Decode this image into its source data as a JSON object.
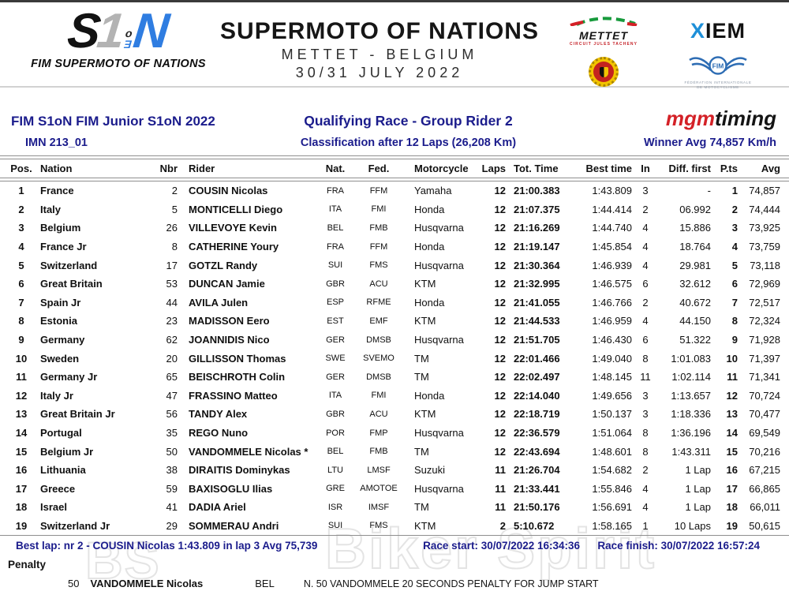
{
  "masthead": {
    "logo": {
      "letter_s": "S",
      "letter_1": "1",
      "letter_o": "o",
      "letter_e": "Ǝ",
      "letter_n": "N",
      "caption": "FIM SUPERMOTO OF NATIONS"
    },
    "event": {
      "line1": "SUPERMOTO OF NATIONS",
      "line2": "METTET - BELGIUM",
      "line3": "30/31 JULY 2022"
    },
    "sponsors": {
      "mettet_word": "METTET",
      "mettet_sub": "CIRCUIT JULES TACHENY",
      "xiem_x": "X",
      "xiem_iem": "IEM",
      "fim_label": "FIM",
      "fim_sub1": "FÉDÉRATION INTERNATIONALE",
      "fim_sub2": "DE MOTOCYCLISME"
    }
  },
  "info": {
    "championship": "FIM S1oN FIM Junior S1oN 2022",
    "imn": "IMN 213_01",
    "race_title": "Qualifying Race - Group Rider 2",
    "classification": "Classification after 12 Laps (26,208 Km)",
    "timing_logo_mgm": "mgm",
    "timing_logo_timing": "timing",
    "winner_avg": "Winner Avg 74,857 Km/h"
  },
  "table": {
    "headers": [
      "Pos.",
      "Nation",
      "Nbr",
      "Rider",
      "Nat.",
      "Fed.",
      "Motorcycle",
      "Laps",
      "Tot. Time",
      "Best time",
      "In",
      "Diff. first",
      "P.ts",
      "Avg"
    ],
    "rows": [
      [
        "1",
        "France",
        "2",
        "COUSIN Nicolas",
        "FRA",
        "FFM",
        "Yamaha",
        "12",
        "21:00.383",
        "1:43.809",
        "3",
        "-",
        "1",
        "74,857"
      ],
      [
        "2",
        "Italy",
        "5",
        "MONTICELLI Diego",
        "ITA",
        "FMI",
        "Honda",
        "12",
        "21:07.375",
        "1:44.414",
        "2",
        "06.992",
        "2",
        "74,444"
      ],
      [
        "3",
        "Belgium",
        "26",
        "VILLEVOYE Kevin",
        "BEL",
        "FMB",
        "Husqvarna",
        "12",
        "21:16.269",
        "1:44.740",
        "4",
        "15.886",
        "3",
        "73,925"
      ],
      [
        "4",
        "France Jr",
        "8",
        "CATHERINE Youry",
        "FRA",
        "FFM",
        "Honda",
        "12",
        "21:19.147",
        "1:45.854",
        "4",
        "18.764",
        "4",
        "73,759"
      ],
      [
        "5",
        "Switzerland",
        "17",
        "GOTZL Randy",
        "SUI",
        "FMS",
        "Husqvarna",
        "12",
        "21:30.364",
        "1:46.939",
        "4",
        "29.981",
        "5",
        "73,118"
      ],
      [
        "6",
        "Great Britain",
        "53",
        "DUNCAN Jamie",
        "GBR",
        "ACU",
        "KTM",
        "12",
        "21:32.995",
        "1:46.575",
        "6",
        "32.612",
        "6",
        "72,969"
      ],
      [
        "7",
        "Spain Jr",
        "44",
        "AVILA Julen",
        "ESP",
        "RFME",
        "Honda",
        "12",
        "21:41.055",
        "1:46.766",
        "2",
        "40.672",
        "7",
        "72,517"
      ],
      [
        "8",
        "Estonia",
        "23",
        "MADISSON Eero",
        "EST",
        "EMF",
        "KTM",
        "12",
        "21:44.533",
        "1:46.959",
        "4",
        "44.150",
        "8",
        "72,324"
      ],
      [
        "9",
        "Germany",
        "62",
        "JOANNIDIS Nico",
        "GER",
        "DMSB",
        "Husqvarna",
        "12",
        "21:51.705",
        "1:46.430",
        "6",
        "51.322",
        "9",
        "71,928"
      ],
      [
        "10",
        "Sweden",
        "20",
        "GILLISSON Thomas",
        "SWE",
        "SVEMO",
        "TM",
        "12",
        "22:01.466",
        "1:49.040",
        "8",
        "1:01.083",
        "10",
        "71,397"
      ],
      [
        "11",
        "Germany Jr",
        "65",
        "BEISCHROTH Colin",
        "GER",
        "DMSB",
        "TM",
        "12",
        "22:02.497",
        "1:48.145",
        "11",
        "1:02.114",
        "11",
        "71,341"
      ],
      [
        "12",
        "Italy Jr",
        "47",
        "FRASSINO Matteo",
        "ITA",
        "FMI",
        "Honda",
        "12",
        "22:14.040",
        "1:49.656",
        "3",
        "1:13.657",
        "12",
        "70,724"
      ],
      [
        "13",
        "Great Britain Jr",
        "56",
        "TANDY Alex",
        "GBR",
        "ACU",
        "KTM",
        "12",
        "22:18.719",
        "1:50.137",
        "3",
        "1:18.336",
        "13",
        "70,477"
      ],
      [
        "14",
        "Portugal",
        "35",
        "REGO Nuno",
        "POR",
        "FMP",
        "Husqvarna",
        "12",
        "22:36.579",
        "1:51.064",
        "8",
        "1:36.196",
        "14",
        "69,549"
      ],
      [
        "15",
        "Belgium Jr",
        "50",
        "VANDOMMELE Nicolas *",
        "BEL",
        "FMB",
        "TM",
        "12",
        "22:43.694",
        "1:48.601",
        "8",
        "1:43.311",
        "15",
        "70,216"
      ],
      [
        "16",
        "Lithuania",
        "38",
        "DIRAITIS Dominykas",
        "LTU",
        "LMSF",
        "Suzuki",
        "11",
        "21:26.704",
        "1:54.682",
        "2",
        "1 Lap",
        "16",
        "67,215"
      ],
      [
        "17",
        "Greece",
        "59",
        "BAXISOGLU Ilias",
        "GRE",
        "AMOTOE",
        "Husqvarna",
        "11",
        "21:33.441",
        "1:55.846",
        "4",
        "1 Lap",
        "17",
        "66,865"
      ],
      [
        "18",
        "Israel",
        "41",
        "DADIA Ariel",
        "ISR",
        "IMSF",
        "TM",
        "11",
        "21:50.176",
        "1:56.691",
        "4",
        "1 Lap",
        "18",
        "66,011"
      ],
      [
        "19",
        "Switzerland Jr",
        "29",
        "SOMMERAU Andri",
        "SUI",
        "FMS",
        "KTM",
        "2",
        "5:10.672",
        "1:58.165",
        "1",
        "10 Laps",
        "19",
        "50,615"
      ]
    ]
  },
  "footer": {
    "best_lap": "Best lap: nr 2 - COUSIN Nicolas 1:43.809 in lap 3 Avg 75,739",
    "race_start": "Race start: 30/07/2022 16:34:36",
    "race_finish": "Race finish: 30/07/2022 16:57:24",
    "penalty_label": "Penalty",
    "penalty": {
      "nbr": "50",
      "rider": "VANDOMMELE Nicolas",
      "nat": "BEL",
      "text": "N. 50 VANDOMMELE 20 SECONDS PENALTY FOR JUMP START"
    }
  },
  "watermark": {
    "bs": "BS",
    "main": "Biker Spirit"
  },
  "colors": {
    "navy": "#1b1c8c",
    "mgm_red": "#d42127",
    "logo_blue": "#2f7de1",
    "xiem_blue": "#1e8fd8"
  }
}
